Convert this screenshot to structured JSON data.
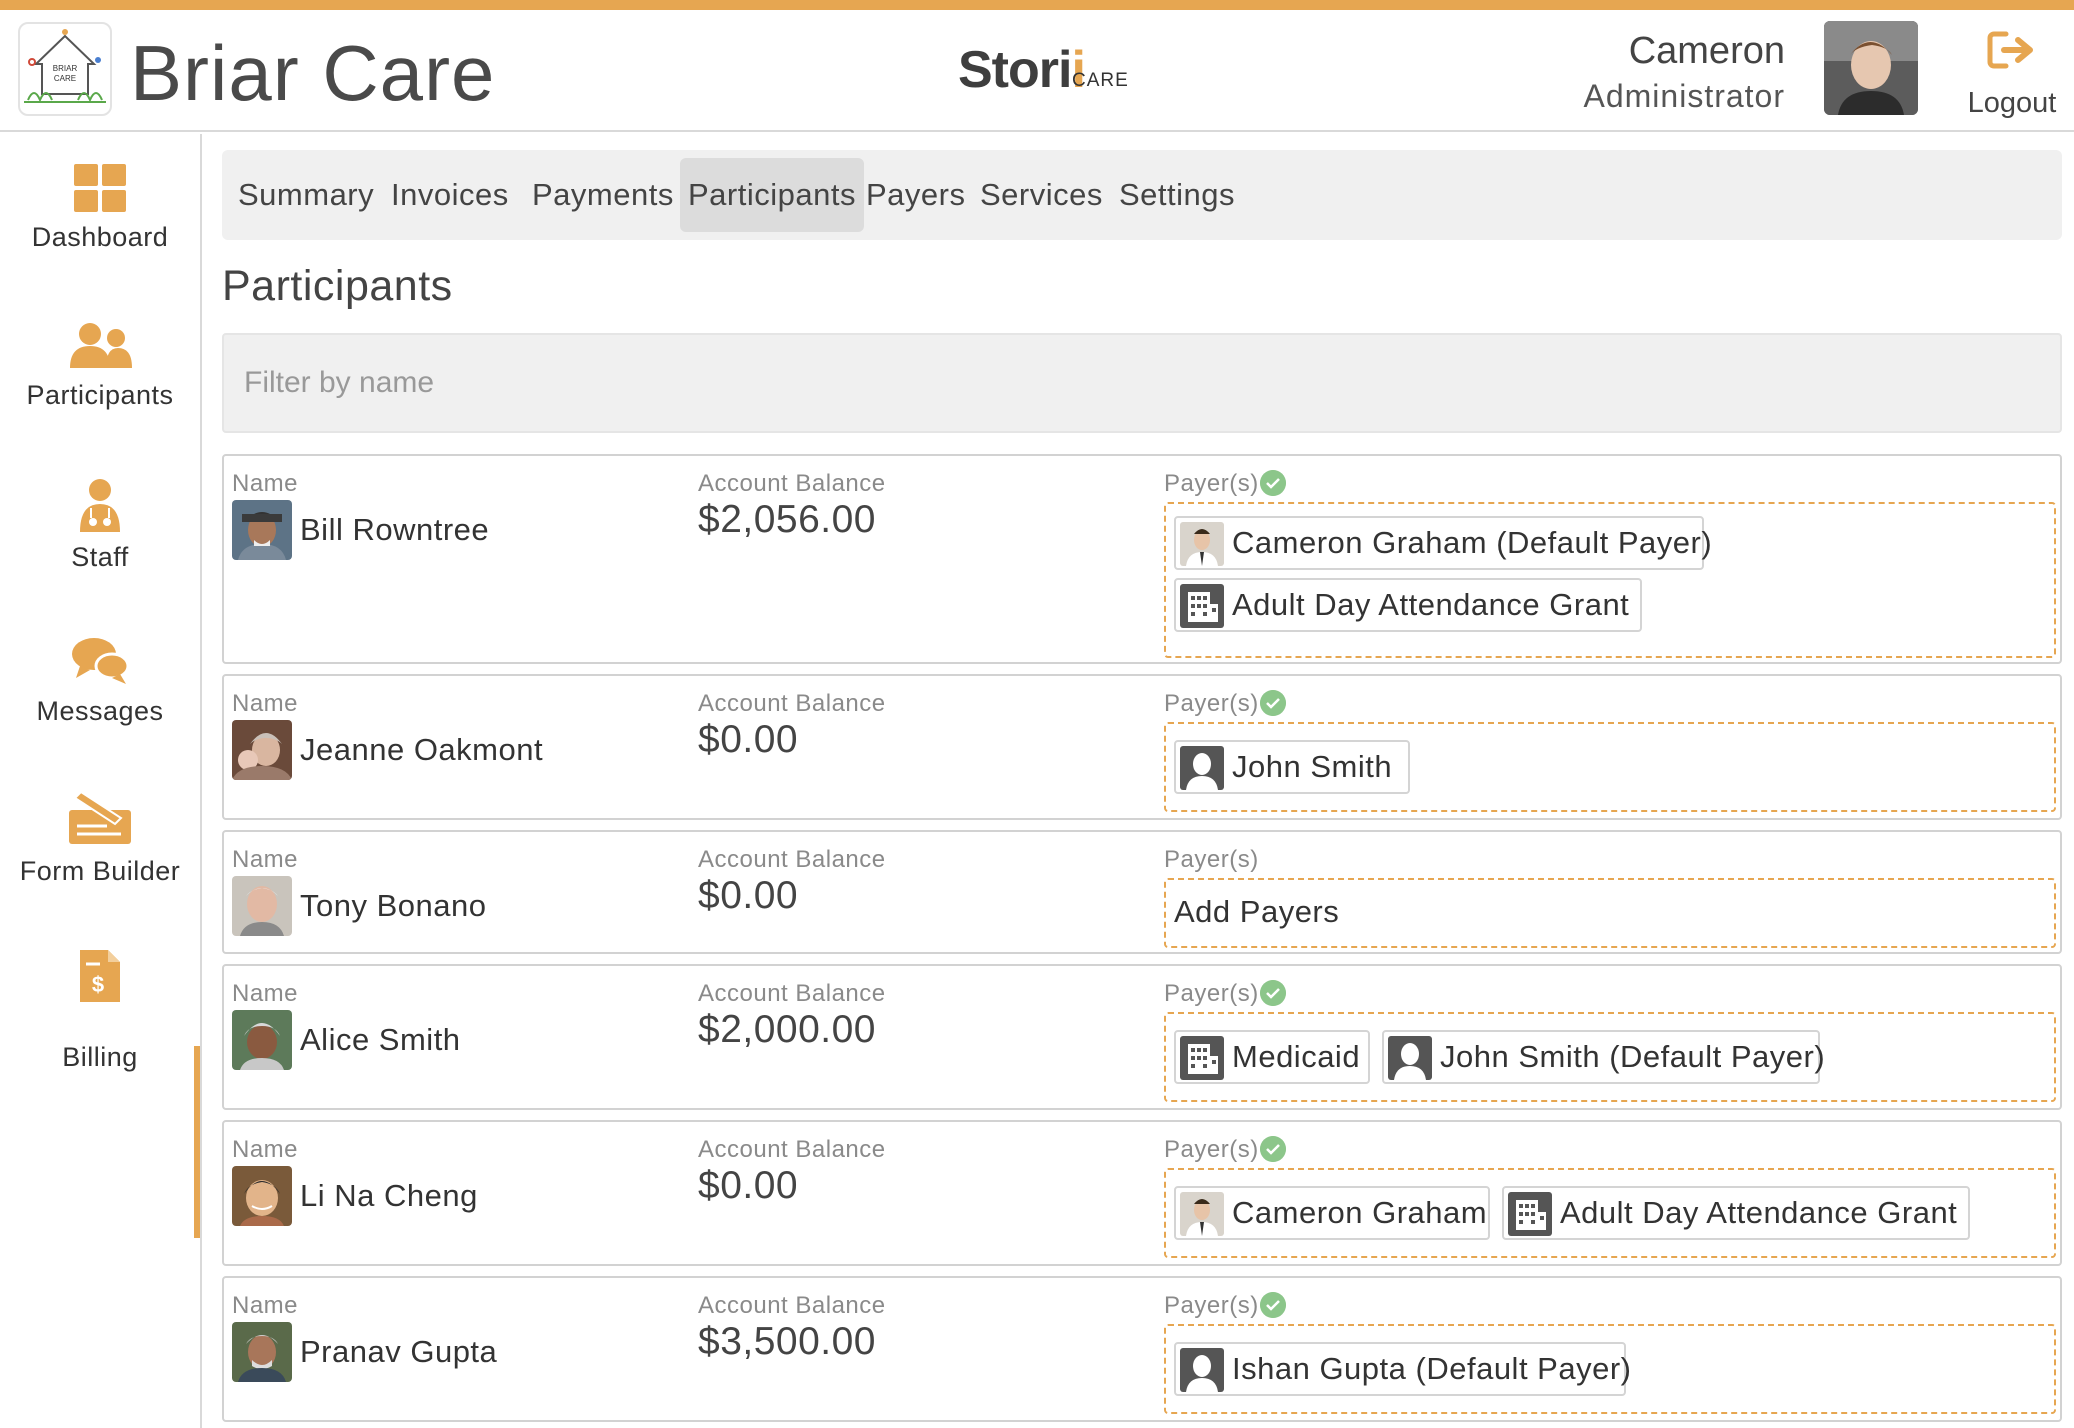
{
  "header": {
    "app_title": "Briar Care",
    "logo_text_line1": "BRIAR",
    "logo_text_line2": "CARE",
    "brand_main": "Stori",
    "brand_accent": "i",
    "brand_sub": "CARE",
    "user_name": "Cameron",
    "user_role": "Administrator",
    "logout_label": "Logout",
    "accent_color": "#e6a651"
  },
  "sidebar": {
    "items": [
      {
        "label": "Dashboard",
        "icon": "dashboard-grid-icon"
      },
      {
        "label": "Participants",
        "icon": "people-icon"
      },
      {
        "label": "Staff",
        "icon": "staff-nurse-icon"
      },
      {
        "label": "Messages",
        "icon": "chat-bubbles-icon"
      },
      {
        "label": "Form Builder",
        "icon": "form-builder-icon"
      },
      {
        "label": "Billing",
        "icon": "billing-invoice-icon"
      }
    ],
    "active": "Billing"
  },
  "tabs": {
    "items": [
      "Summary",
      "Invoices",
      "Payments",
      "Participants",
      "Payers",
      "Services",
      "Settings"
    ],
    "active": "Participants"
  },
  "page": {
    "title": "Participants",
    "filter_placeholder": "Filter by name"
  },
  "labels": {
    "name": "Name",
    "balance": "Account Balance",
    "payers": "Payer(s)",
    "add_payers": "Add Payers"
  },
  "participants": [
    {
      "name": "Bill Rowntree",
      "balance": "$2,056.00",
      "verified": true,
      "payers": [
        {
          "label": "Cameron Graham (Default Payer)",
          "type": "person-photo"
        },
        {
          "label": "Adult Day Attendance Grant",
          "type": "building-icon"
        }
      ]
    },
    {
      "name": "Jeanne Oakmont",
      "balance": "$0.00",
      "verified": true,
      "payers": [
        {
          "label": "John Smith",
          "type": "person-silhouette-icon"
        }
      ]
    },
    {
      "name": "Tony Bonano",
      "balance": "$0.00",
      "verified": false,
      "payers": []
    },
    {
      "name": "Alice Smith",
      "balance": "$2,000.00",
      "verified": true,
      "payers": [
        {
          "label": "Medicaid",
          "type": "building-icon"
        },
        {
          "label": "John Smith (Default Payer)",
          "type": "person-silhouette-icon"
        }
      ]
    },
    {
      "name": "Li Na Cheng",
      "balance": "$0.00",
      "verified": true,
      "payers": [
        {
          "label": "Cameron Graham",
          "type": "person-photo"
        },
        {
          "label": "Adult Day Attendance Grant",
          "type": "building-icon"
        }
      ]
    },
    {
      "name": "Pranav Gupta",
      "balance": "$3,500.00",
      "verified": true,
      "payers": [
        {
          "label": "Ishan Gupta (Default Payer)",
          "type": "person-silhouette-icon"
        }
      ]
    }
  ]
}
